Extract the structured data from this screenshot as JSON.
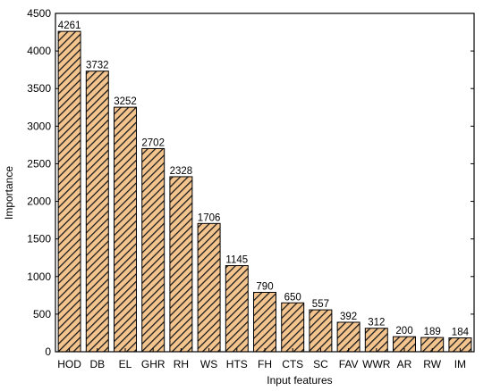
{
  "colors": {
    "bar_fill": "#F4C48F",
    "hatch": "#1a1a1a",
    "bar_stroke": "#000000",
    "axis": "#000000"
  },
  "chart_data": {
    "type": "bar",
    "title": "",
    "xlabel": "Input features",
    "ylabel": "Importance",
    "categories": [
      "HOD",
      "DB",
      "EL",
      "GHR",
      "RH",
      "WS",
      "HTS",
      "FH",
      "CTS",
      "SC",
      "FAV",
      "WWR",
      "AR",
      "RW",
      "IM"
    ],
    "values": [
      4261,
      3732,
      3252,
      2702,
      2328,
      1706,
      1145,
      790,
      650,
      557,
      392,
      312,
      200,
      189,
      184
    ],
    "data_labels": [
      "4261",
      "3732",
      "3252",
      "2702",
      "2328",
      "1706",
      "1145",
      "790",
      "650",
      "557",
      "392",
      "312",
      "200",
      "189",
      "184"
    ],
    "ylim": [
      0,
      4500
    ],
    "yticks": [
      0,
      500,
      1000,
      1500,
      2000,
      2500,
      3000,
      3500,
      4000,
      4500
    ],
    "ytick_labels": [
      "0",
      "500",
      "1000",
      "1500",
      "2000",
      "2500",
      "3000",
      "3500",
      "4000",
      "4500"
    ],
    "grid": false,
    "legend": "none",
    "bar_pattern": "diagonal-hatch"
  }
}
